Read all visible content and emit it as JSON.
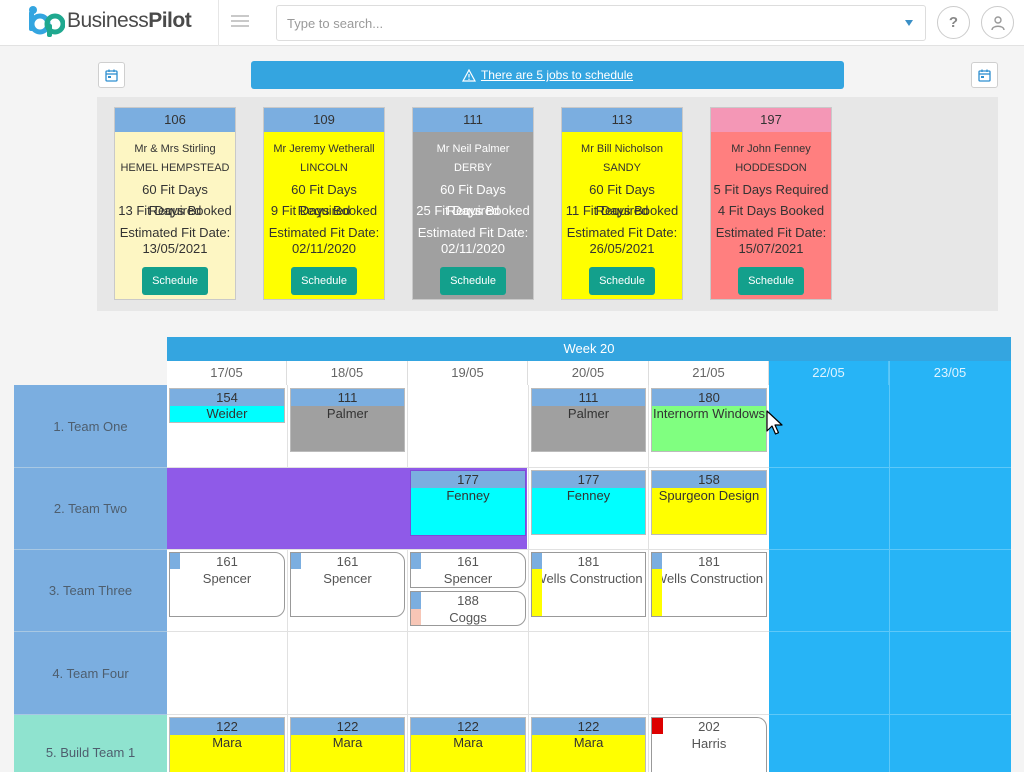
{
  "header": {
    "brand_part1": "Business",
    "brand_part2": "Pilot",
    "search_placeholder": "Type to search...",
    "help_label": "?",
    "icons": [
      "hamburger-icon",
      "dropdown-caret-icon",
      "user-icon",
      "calendar-icon",
      "warning-icon"
    ]
  },
  "banner": {
    "text": "There are 5 jobs to schedule"
  },
  "jobs": [
    {
      "id": "106",
      "name": "Mr & Mrs Stirling",
      "town": "HEMEL HEMPSTEAD",
      "required": "60 Fit Days Required",
      "booked": "13 Fit Days Booked",
      "est_label": "Estimated Fit Date:",
      "est_date": "13/05/2021",
      "button": "Schedule",
      "head_color": "#7baee0",
      "body_color": "#fdf6c3"
    },
    {
      "id": "109",
      "name": "Mr Jeremy Wetherall",
      "town": "LINCOLN",
      "required": "60 Fit Days Required",
      "booked": "9 Fit Days Booked",
      "est_label": "Estimated Fit Date:",
      "est_date": "02/11/2020",
      "button": "Schedule",
      "head_color": "#7baee0",
      "body_color": "#ffff00"
    },
    {
      "id": "111",
      "name": "Mr Neil Palmer",
      "town": "DERBY",
      "required": "60 Fit Days Required",
      "booked": "25 Fit Days Booked",
      "est_label": "Estimated Fit Date:",
      "est_date": "02/11/2020",
      "button": "Schedule",
      "head_color": "#7baee0",
      "body_color": "#a0a0a0"
    },
    {
      "id": "113",
      "name": "Mr Bill Nicholson",
      "town": "SANDY",
      "required": "60 Fit Days Required",
      "booked": "11 Fit Days Booked",
      "est_label": "Estimated Fit Date:",
      "est_date": "26/05/2021",
      "button": "Schedule",
      "head_color": "#7baee0",
      "body_color": "#ffff00"
    },
    {
      "id": "197",
      "name": "Mr John Fenney",
      "town": "HODDESDON",
      "required": "5 Fit Days Required",
      "booked": "4 Fit Days Booked",
      "est_label": "Estimated Fit Date:",
      "est_date": "15/07/2021",
      "button": "Schedule",
      "head_color": "#f497b6",
      "body_color": "#ff7f7f"
    }
  ],
  "schedule": {
    "week_label": "Week 20",
    "days": [
      "17/05",
      "18/05",
      "19/05",
      "20/05",
      "21/05",
      "22/05",
      "23/05"
    ],
    "teams": [
      "1. Team One",
      "2. Team Two",
      "3. Team Three",
      "4. Team Four",
      "5. Build Team 1"
    ],
    "team_colors": [
      "#7baee0",
      "#7baee0",
      "#7baee0",
      "#7baee0",
      "#8fe3cf"
    ],
    "events": [
      {
        "num": "154",
        "name": "Weider",
        "color": "#00ffff"
      },
      {
        "num": "111",
        "name": "Palmer",
        "color": "#a0a0a0"
      },
      {
        "num": "111",
        "name": "Palmer",
        "color": "#a0a0a0"
      },
      {
        "num": "180",
        "name": "Internorm Windows",
        "color": "#80ff80"
      },
      {
        "num": "177",
        "name": "Fenney",
        "color": "#00ffff"
      },
      {
        "num": "177",
        "name": "Fenney",
        "color": "#00ffff"
      },
      {
        "num": "158",
        "name": "Spurgeon Design",
        "color": "#ffff00"
      },
      {
        "num": "161",
        "name": "Spencer",
        "color": "#7baee0"
      },
      {
        "num": "161",
        "name": "Spencer",
        "color": "#7baee0"
      },
      {
        "num": "161",
        "name": "Spencer",
        "color": "#7baee0"
      },
      {
        "num": "188",
        "name": "Coggs",
        "color": "#f7c6b6"
      },
      {
        "num": "181",
        "name": "Wells Construction",
        "color": "#ffff00"
      },
      {
        "num": "181",
        "name": "Wells Construction",
        "color": "#ffff00"
      },
      {
        "num": "122",
        "name": "Mara",
        "color": "#ffff00"
      },
      {
        "num": "122",
        "name": "Mara",
        "color": "#ffff00"
      },
      {
        "num": "122",
        "name": "Mara",
        "color": "#ffff00"
      },
      {
        "num": "122",
        "name": "Mara",
        "color": "#ffff00"
      },
      {
        "num": "202",
        "name": "Harris",
        "color": "#dd0000"
      }
    ],
    "block_colors": {
      "purple": "#8f5ae8",
      "weekend": "#27b4f6"
    }
  }
}
